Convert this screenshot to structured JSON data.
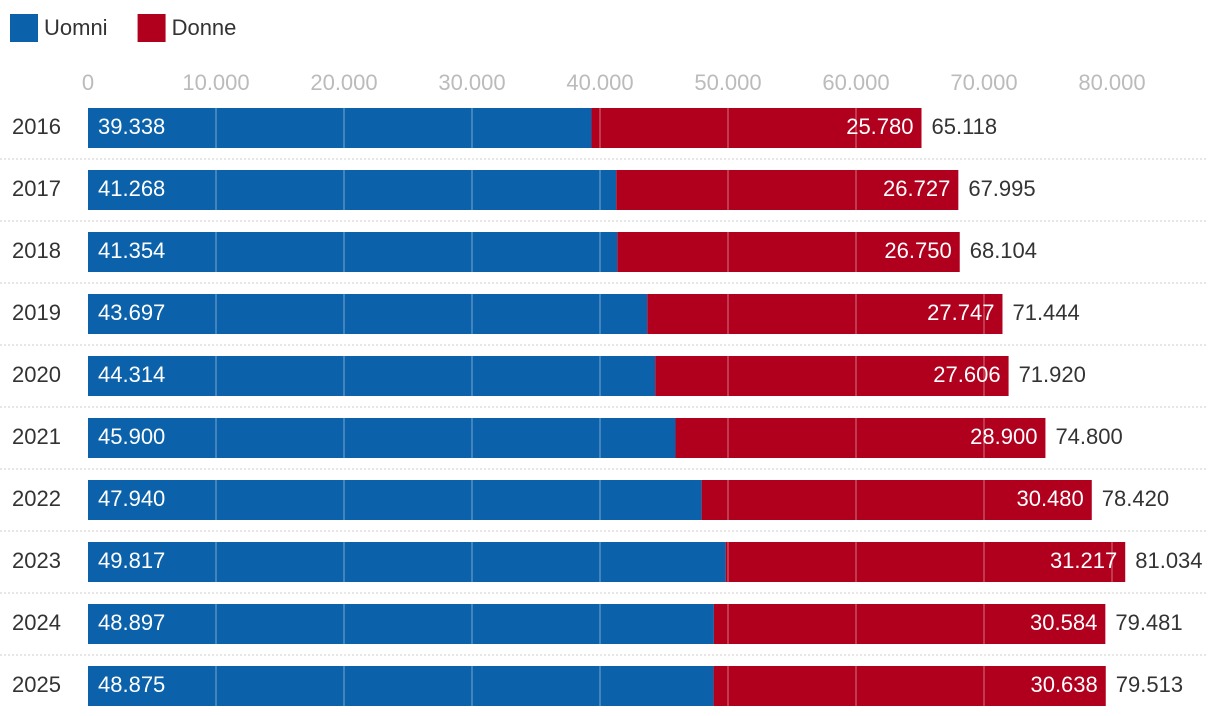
{
  "chart_data": {
    "type": "stacked-barh",
    "categories": [
      "2016",
      "2017",
      "2018",
      "2019",
      "2020",
      "2021",
      "2022",
      "2023",
      "2024",
      "2025"
    ],
    "series": [
      {
        "name": "Uomni",
        "color": "#0b62ab",
        "values": [
          39338,
          41268,
          41354,
          43697,
          44314,
          45900,
          47940,
          49817,
          48897,
          48875
        ],
        "value_labels": [
          "39.338",
          "41.268",
          "41.354",
          "43.697",
          "44.314",
          "45.900",
          "47.940",
          "49.817",
          "48.897",
          "48.875"
        ]
      },
      {
        "name": "Donne",
        "color": "#b0001e",
        "values": [
          25780,
          26727,
          26750,
          27747,
          27606,
          28900,
          30480,
          31217,
          30584,
          30638
        ],
        "value_labels": [
          "25.780",
          "26.727",
          "26.750",
          "27.747",
          "27.606",
          "28.900",
          "30.480",
          "31.217",
          "30.584",
          "30.638"
        ]
      }
    ],
    "totals": {
      "values": [
        65118,
        67995,
        68104,
        71444,
        71920,
        74800,
        78420,
        81034,
        79481,
        79513
      ],
      "value_labels": [
        "65.118",
        "67.995",
        "68.104",
        "71.444",
        "71.920",
        "74.800",
        "78.420",
        "81.034",
        "79.481",
        "79.513"
      ]
    },
    "xlim": [
      0,
      80000
    ],
    "xticks": [
      0,
      {
        "value": 10000,
        "label": "10.000"
      },
      {
        "value": 20000,
        "label": "20.000"
      },
      {
        "value": 30000,
        "label": "30.000"
      },
      {
        "value": 40000,
        "label": "40.000"
      },
      {
        "value": 50000,
        "label": "50.000"
      },
      {
        "value": 60000,
        "label": "60.000"
      },
      {
        "value": 70000,
        "label": "70.000"
      },
      {
        "value": 80000,
        "label": "80.000"
      }
    ],
    "grid": true,
    "legend": "top-left"
  }
}
